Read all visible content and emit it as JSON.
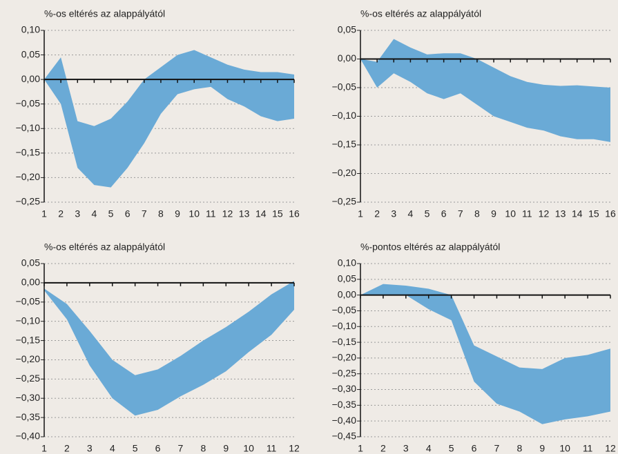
{
  "chart_data": [
    {
      "type": "band",
      "title": "%-os eltérés az alappályától",
      "color": "#6aaad6",
      "grid": true,
      "categories": [
        "1",
        "2",
        "3",
        "4",
        "5",
        "6",
        "7",
        "8",
        "9",
        "10",
        "11",
        "12",
        "13",
        "14",
        "15",
        "16"
      ],
      "series": [
        {
          "values": [
            0,
            0.045,
            -0.085,
            -0.095,
            -0.08,
            -0.045,
            0,
            0.025,
            0.05,
            0.06,
            0.045,
            0.03,
            0.02,
            0.015,
            0.015,
            0.01
          ]
        },
        {
          "values": [
            0,
            -0.05,
            -0.18,
            -0.215,
            -0.22,
            -0.18,
            -0.13,
            -0.07,
            -0.03,
            -0.02,
            -0.015,
            -0.04,
            -0.055,
            -0.075,
            -0.085,
            -0.08
          ]
        }
      ],
      "ylim": [
        -0.25,
        0.1
      ],
      "yticks": [
        {
          "value": 0.1,
          "label": "0,10"
        },
        {
          "value": 0.05,
          "label": "0,05"
        },
        {
          "value": 0,
          "label": "0,00"
        },
        {
          "value": -0.05,
          "label": "−0,05"
        },
        {
          "value": -0.1,
          "label": "−0,10"
        },
        {
          "value": -0.15,
          "label": "−0,15"
        },
        {
          "value": -0.2,
          "label": "−0,20"
        },
        {
          "value": -0.25,
          "label": "−0,25"
        }
      ]
    },
    {
      "type": "band",
      "title": "%-os eltérés az alappályától",
      "color": "#6aaad6",
      "grid": true,
      "categories": [
        "1",
        "2",
        "3",
        "4",
        "5",
        "6",
        "7",
        "8",
        "9",
        "10",
        "11",
        "12",
        "13",
        "14",
        "15",
        "16"
      ],
      "series": [
        {
          "values": [
            0,
            -0.005,
            0.035,
            0.02,
            0.008,
            0.01,
            0.01,
            0,
            -0.015,
            -0.03,
            -0.04,
            -0.045,
            -0.047,
            -0.046,
            -0.048,
            -0.05
          ]
        },
        {
          "values": [
            0,
            -0.05,
            -0.025,
            -0.04,
            -0.06,
            -0.07,
            -0.06,
            -0.08,
            -0.1,
            -0.11,
            -0.12,
            -0.125,
            -0.135,
            -0.14,
            -0.14,
            -0.145
          ]
        }
      ],
      "ylim": [
        -0.25,
        0.05
      ],
      "yticks": [
        {
          "value": 0.05,
          "label": "0,05"
        },
        {
          "value": 0,
          "label": "0,00"
        },
        {
          "value": -0.05,
          "label": "−0,05"
        },
        {
          "value": -0.1,
          "label": "−0,10"
        },
        {
          "value": -0.15,
          "label": "−0,15"
        },
        {
          "value": -0.2,
          "label": "−0,20"
        },
        {
          "value": -0.25,
          "label": "−0,25"
        }
      ]
    },
    {
      "type": "band",
      "title": "%-os eltérés az alappályától",
      "color": "#6aaad6",
      "grid": true,
      "categories": [
        "1",
        "2",
        "3",
        "4",
        "5",
        "6",
        "7",
        "8",
        "9",
        "10",
        "11",
        "12"
      ],
      "series": [
        {
          "values": [
            -0.015,
            -0.055,
            -0.125,
            -0.2,
            -0.24,
            -0.225,
            -0.19,
            -0.15,
            -0.115,
            -0.075,
            -0.03,
            0.005
          ]
        },
        {
          "values": [
            -0.02,
            -0.095,
            -0.215,
            -0.3,
            -0.345,
            -0.33,
            -0.295,
            -0.265,
            -0.23,
            -0.18,
            -0.135,
            -0.07
          ]
        }
      ],
      "ylim": [
        -0.4,
        0.05
      ],
      "yticks": [
        {
          "value": 0.05,
          "label": "0,05"
        },
        {
          "value": 0,
          "label": "0,00"
        },
        {
          "value": -0.05,
          "label": "−0,05"
        },
        {
          "value": -0.1,
          "label": "−0,10"
        },
        {
          "value": -0.15,
          "label": "−0,15"
        },
        {
          "value": -0.2,
          "label": "−0,20"
        },
        {
          "value": -0.25,
          "label": "−0,25"
        },
        {
          "value": -0.3,
          "label": "−0,30"
        },
        {
          "value": -0.35,
          "label": "−0,35"
        },
        {
          "value": -0.4,
          "label": "−0,40"
        }
      ]
    },
    {
      "type": "band",
      "title": "%-pontos eltérés az alappályától",
      "color": "#6aaad6",
      "grid": true,
      "categories": [
        "1",
        "2",
        "3",
        "4",
        "5",
        "6",
        "7",
        "8",
        "9",
        "10",
        "11",
        "12"
      ],
      "series": [
        {
          "values": [
            0,
            0.035,
            0.03,
            0.02,
            0,
            -0.16,
            -0.195,
            -0.23,
            -0.235,
            -0.2,
            -0.19,
            -0.17
          ]
        },
        {
          "values": [
            0,
            0,
            0,
            -0.045,
            -0.08,
            -0.275,
            -0.345,
            -0.37,
            -0.41,
            -0.395,
            -0.385,
            -0.37
          ]
        }
      ],
      "ylim": [
        -0.45,
        0.1
      ],
      "yticks": [
        {
          "value": 0.1,
          "label": "0,10"
        },
        {
          "value": 0.05,
          "label": "0,05"
        },
        {
          "value": 0,
          "label": "0,00"
        },
        {
          "value": -0.05,
          "label": "−0,05"
        },
        {
          "value": -0.1,
          "label": "−0,10"
        },
        {
          "value": -0.15,
          "label": "−0,15"
        },
        {
          "value": -0.2,
          "label": "−0,20"
        },
        {
          "value": -0.25,
          "label": "−0,25"
        },
        {
          "value": -0.3,
          "label": "−0,30"
        },
        {
          "value": -0.35,
          "label": "−0,35"
        },
        {
          "value": -0.4,
          "label": "−0,40"
        },
        {
          "value": -0.45,
          "label": "−0,45"
        }
      ]
    }
  ]
}
